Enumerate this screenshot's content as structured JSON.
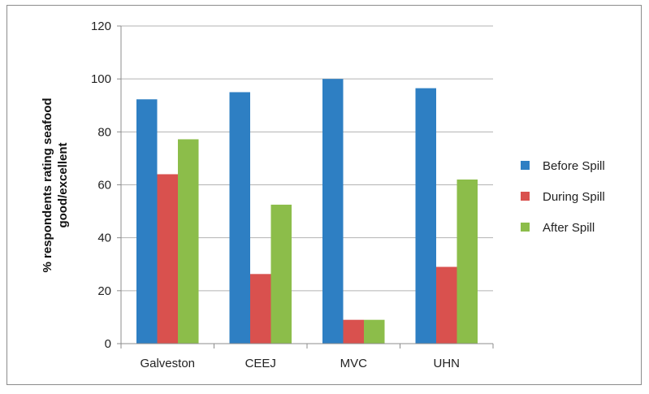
{
  "chart_data": {
    "type": "bar",
    "categories": [
      "Galveston",
      "CEEJ",
      "MVC",
      "UHN"
    ],
    "series": [
      {
        "name": "Before Spill",
        "color": "#2e7fc3",
        "values": [
          92.3,
          95,
          100,
          96.5
        ]
      },
      {
        "name": "During Spill",
        "color": "#d9514e",
        "values": [
          64,
          26.3,
          9,
          29
        ]
      },
      {
        "name": "After Spill",
        "color": "#8cbd4a",
        "values": [
          77.2,
          52.5,
          9,
          62
        ]
      }
    ],
    "title": "",
    "xlabel": "",
    "ylabel_lines": [
      "% respondents rating seafood",
      "good/excellent"
    ],
    "ylim": [
      0,
      120
    ],
    "yticks": [
      0,
      20,
      40,
      60,
      80,
      100,
      120
    ],
    "grid": true,
    "legend_position": "right"
  }
}
